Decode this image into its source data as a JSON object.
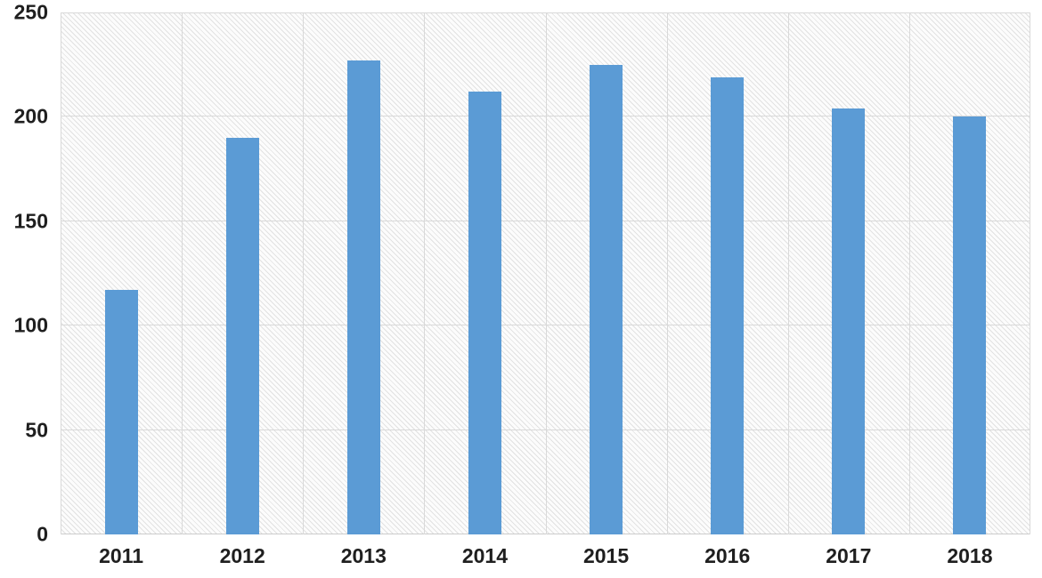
{
  "chart": {
    "title": "",
    "colors": {
      "bar": "#5B9BD5",
      "gridline": "#D9D9D9",
      "axis_text": "#1F1F1F",
      "hatch_line": "#E2E2E2",
      "hatch_background": "#FCFCFC",
      "page_background": "#FFFFFF"
    }
  },
  "chart_data": {
    "type": "bar",
    "categories": [
      "2011",
      "2012",
      "2013",
      "2014",
      "2015",
      "2016",
      "2017",
      "2018"
    ],
    "values": [
      117,
      190,
      227,
      212,
      225,
      219,
      204,
      200
    ],
    "series": [
      {
        "name": "",
        "values": [
          117,
          190,
          227,
          212,
          225,
          219,
          204,
          200
        ]
      }
    ],
    "title": "",
    "xlabel": "",
    "ylabel": "",
    "ylim": [
      0,
      250
    ],
    "ytick_step": 50,
    "yticks": [
      "0",
      "50",
      "100",
      "150",
      "200",
      "250"
    ],
    "grid": true,
    "vertical_grid": true,
    "legend": false,
    "legend_position": "none",
    "plot_background": "light-diagonal-hatch"
  }
}
